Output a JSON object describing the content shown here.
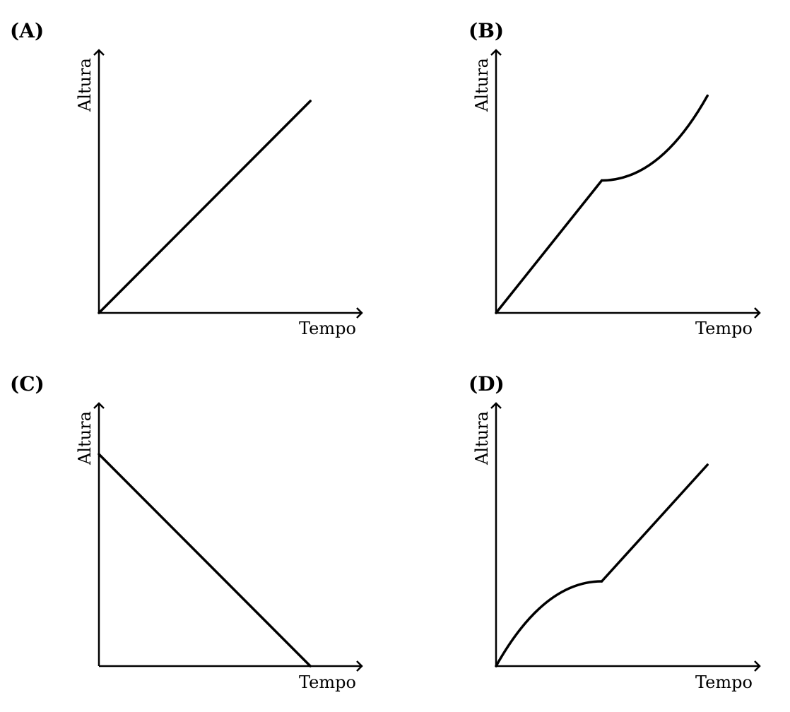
{
  "chart_data": [
    {
      "type": "line",
      "panel": "(A)",
      "xlabel": "Tempo",
      "ylabel": "Altura",
      "xlim": [
        0,
        10
      ],
      "ylim": [
        0,
        10
      ],
      "series": [
        {
          "x": [
            0,
            8
          ],
          "y": [
            0,
            8
          ],
          "shape": "linear"
        }
      ]
    },
    {
      "type": "line",
      "panel": "(B)",
      "xlabel": "Tempo",
      "ylabel": "Altura",
      "xlim": [
        0,
        10
      ],
      "ylim": [
        0,
        10
      ],
      "series": [
        {
          "x": [
            0,
            4
          ],
          "y": [
            0,
            5
          ],
          "shape": "linear"
        },
        {
          "x": [
            4,
            8
          ],
          "y": [
            5,
            8.2
          ],
          "shape": "concave-up"
        }
      ]
    },
    {
      "type": "line",
      "panel": "(C)",
      "xlabel": "Tempo",
      "ylabel": "Altura",
      "xlim": [
        0,
        10
      ],
      "ylim": [
        0,
        10
      ],
      "series": [
        {
          "x": [
            0,
            8
          ],
          "y": [
            8,
            0
          ],
          "shape": "linear"
        }
      ]
    },
    {
      "type": "line",
      "panel": "(D)",
      "xlabel": "Tempo",
      "ylabel": "Altura",
      "xlim": [
        0,
        10
      ],
      "ylim": [
        0,
        10
      ],
      "series": [
        {
          "x": [
            0,
            4
          ],
          "y": [
            0,
            3.2
          ],
          "shape": "concave-down"
        },
        {
          "x": [
            4,
            8
          ],
          "y": [
            3.2,
            7.6
          ],
          "shape": "linear"
        }
      ]
    }
  ]
}
